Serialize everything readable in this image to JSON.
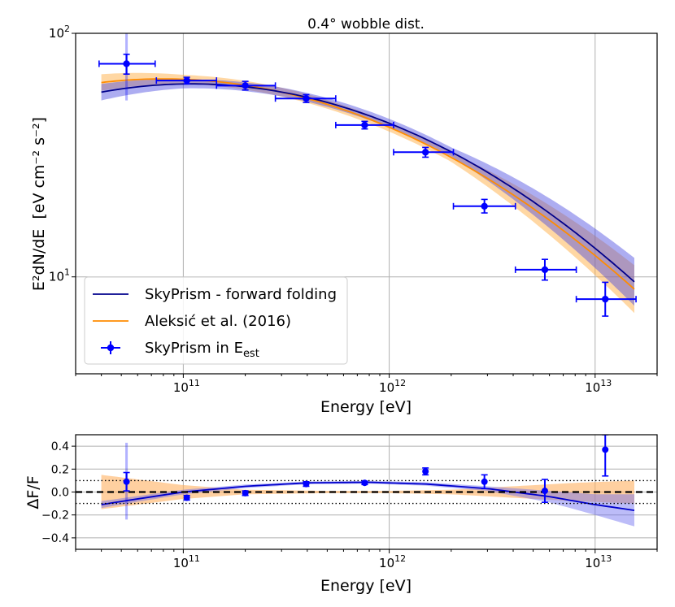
{
  "chart_data": [
    {
      "type": "line",
      "title": "0.4° wobble dist.",
      "xlabel": "Energy [eV]",
      "ylabel_main": "E²dN/dE",
      "ylabel_units": "[eV cm⁻² s⁻²]",
      "xscale": "log",
      "yscale": "log",
      "xlim": [
        30000000000.0,
        20000000000000.0
      ],
      "ylim": [
        4,
        100
      ],
      "x_ticks": [
        {
          "value": 100000000000.0,
          "base": "10",
          "exp": "11"
        },
        {
          "value": 1000000000000.0,
          "base": "10",
          "exp": "12"
        },
        {
          "value": 10000000000000.0,
          "base": "10",
          "exp": "13"
        }
      ],
      "y_ticks": [
        {
          "value": 10,
          "base": "10",
          "exp": "1"
        },
        {
          "value": 100,
          "base": "10",
          "exp": "2"
        }
      ],
      "legend": {
        "position": "lower-left",
        "entries": [
          {
            "label": "SkyPrism - forward folding",
            "kind": "line",
            "color": "#00008b"
          },
          {
            "label": "Aleksić et al. (2016)",
            "kind": "line",
            "color": "#ff8c00"
          },
          {
            "label_main": "SkyPrism in E",
            "label_sub": "est",
            "kind": "errorbar",
            "color": "#0000ff"
          }
        ]
      },
      "series": [
        {
          "name": "SkyPrism - forward folding",
          "kind": "logparabola",
          "color": "#00008b",
          "band_color": "#4a4adf",
          "norm": 62,
          "e_peak": 110000000000.0,
          "beta": 0.32,
          "e_range": [
            40000000000.0,
            15500000000000.0
          ],
          "band_half_width_dex": 0.03
        },
        {
          "name": "Aleksić et al. (2016)",
          "kind": "logparabola",
          "color": "#ff8c00",
          "band_color": "#ffa733",
          "norm": 65,
          "e_peak": 80000000000.0,
          "beta": 0.3,
          "e_range": [
            40000000000.0,
            15500000000000.0
          ],
          "band_half_width_dex": 0.03
        },
        {
          "name": "SkyPrism in E_est",
          "kind": "errorbar",
          "color": "#0000ff",
          "points": [
            {
              "x": 53000000000.0,
              "y": 75,
              "xlo": 39000000000.0,
              "xhi": 73000000000.0,
              "ylo": 68,
              "yhi": 82,
              "ylo_sys": 53,
              "yhi_sys": 100
            },
            {
              "x": 104000000000.0,
              "y": 64,
              "xlo": 74000000000.0,
              "xhi": 145000000000.0,
              "ylo": 62,
              "yhi": 66
            },
            {
              "x": 200000000000.0,
              "y": 61,
              "xlo": 145000000000.0,
              "xhi": 280000000000.0,
              "ylo": 58.5,
              "yhi": 63.5
            },
            {
              "x": 395000000000.0,
              "y": 54,
              "xlo": 280000000000.0,
              "xhi": 550000000000.0,
              "ylo": 52,
              "yhi": 56
            },
            {
              "x": 760000000000.0,
              "y": 42,
              "xlo": 550000000000.0,
              "xhi": 1050000000000.0,
              "ylo": 40.5,
              "yhi": 43.5
            },
            {
              "x": 1500000000000.0,
              "y": 32.5,
              "xlo": 1050000000000.0,
              "xhi": 2050000000000.0,
              "ylo": 31,
              "yhi": 34
            },
            {
              "x": 2900000000000.0,
              "y": 19.5,
              "xlo": 2050000000000.0,
              "xhi": 4100000000000.0,
              "ylo": 18.3,
              "yhi": 20.8
            },
            {
              "x": 5700000000000.0,
              "y": 10.7,
              "xlo": 4100000000000.0,
              "xhi": 8100000000000.0,
              "ylo": 9.7,
              "yhi": 11.8
            },
            {
              "x": 11200000000000.0,
              "y": 8.1,
              "xlo": 8100000000000.0,
              "xhi": 15800000000000.0,
              "ylo": 6.9,
              "yhi": 9.5
            }
          ]
        }
      ]
    },
    {
      "type": "line",
      "xlabel": "Energy [eV]",
      "ylabel": "ΔF/F",
      "xscale": "log",
      "xlim": [
        30000000000.0,
        20000000000000.0
      ],
      "ylim": [
        -0.5,
        0.5
      ],
      "y_ticks": [
        "0.4",
        "0.2",
        "0.0",
        "−0.2",
        "−0.4"
      ],
      "y_tick_values": [
        0.4,
        0.2,
        0.0,
        -0.2,
        -0.4
      ],
      "x_ticks": [
        {
          "value": 100000000000.0,
          "base": "10",
          "exp": "11"
        },
        {
          "value": 1000000000000.0,
          "base": "10",
          "exp": "12"
        },
        {
          "value": 10000000000000.0,
          "base": "10",
          "exp": "13"
        }
      ],
      "reference_lines": [
        {
          "y": 0,
          "style": "dashed"
        },
        {
          "y": 0.1,
          "style": "dotted"
        },
        {
          "y": -0.1,
          "style": "dotted"
        }
      ],
      "series": [
        {
          "name": "forward folding residual",
          "kind": "curve",
          "color": "#0000cc",
          "band_color": "#6a6af0",
          "x": [
            40000000000.0,
            60000000000.0,
            100000000000.0,
            200000000000.0,
            400000000000.0,
            800000000000.0,
            1500000000000.0,
            3000000000000.0,
            6000000000000.0,
            10000000000000.0,
            15500000000000.0
          ],
          "y": [
            -0.11,
            -0.06,
            0.0,
            0.05,
            0.08,
            0.085,
            0.07,
            0.03,
            -0.04,
            -0.11,
            -0.16
          ],
          "band": [
            0.03,
            0.025,
            0.02,
            0.015,
            0.012,
            0.012,
            0.015,
            0.02,
            0.05,
            0.09,
            0.14
          ]
        },
        {
          "name": "Aleksić band",
          "kind": "band",
          "color": "#ff8c00",
          "band_color": "#ffb060",
          "x": [
            40000000000.0,
            60000000000.0,
            100000000000.0,
            200000000000.0,
            500000000000.0,
            1000000000000.0,
            2000000000000.0,
            4000000000000.0,
            8000000000000.0,
            15500000000000.0
          ],
          "half_width": [
            0.15,
            0.11,
            0.06,
            0.02,
            0.01,
            0.01,
            0.02,
            0.05,
            0.08,
            0.1
          ]
        },
        {
          "name": "SkyPrism in E_est residuals",
          "kind": "errorbar",
          "color": "#0000ff",
          "points": [
            {
              "x": 53000000000.0,
              "y": 0.09,
              "ylo": 0.01,
              "yhi": 0.17,
              "ylo_sys": -0.24,
              "yhi_sys": 0.43
            },
            {
              "x": 104000000000.0,
              "y": -0.05,
              "ylo": -0.07,
              "yhi": -0.03
            },
            {
              "x": 200000000000.0,
              "y": -0.01,
              "ylo": -0.03,
              "yhi": 0.01
            },
            {
              "x": 395000000000.0,
              "y": 0.07,
              "ylo": 0.05,
              "yhi": 0.09
            },
            {
              "x": 760000000000.0,
              "y": 0.08,
              "ylo": 0.065,
              "yhi": 0.095
            },
            {
              "x": 1500000000000.0,
              "y": 0.18,
              "ylo": 0.15,
              "yhi": 0.21
            },
            {
              "x": 2900000000000.0,
              "y": 0.09,
              "ylo": 0.03,
              "yhi": 0.15
            },
            {
              "x": 5700000000000.0,
              "y": 0.01,
              "ylo": -0.09,
              "yhi": 0.11
            },
            {
              "x": 11200000000000.0,
              "y": 0.37,
              "ylo": 0.14,
              "yhi": 0.5
            }
          ]
        }
      ]
    }
  ]
}
